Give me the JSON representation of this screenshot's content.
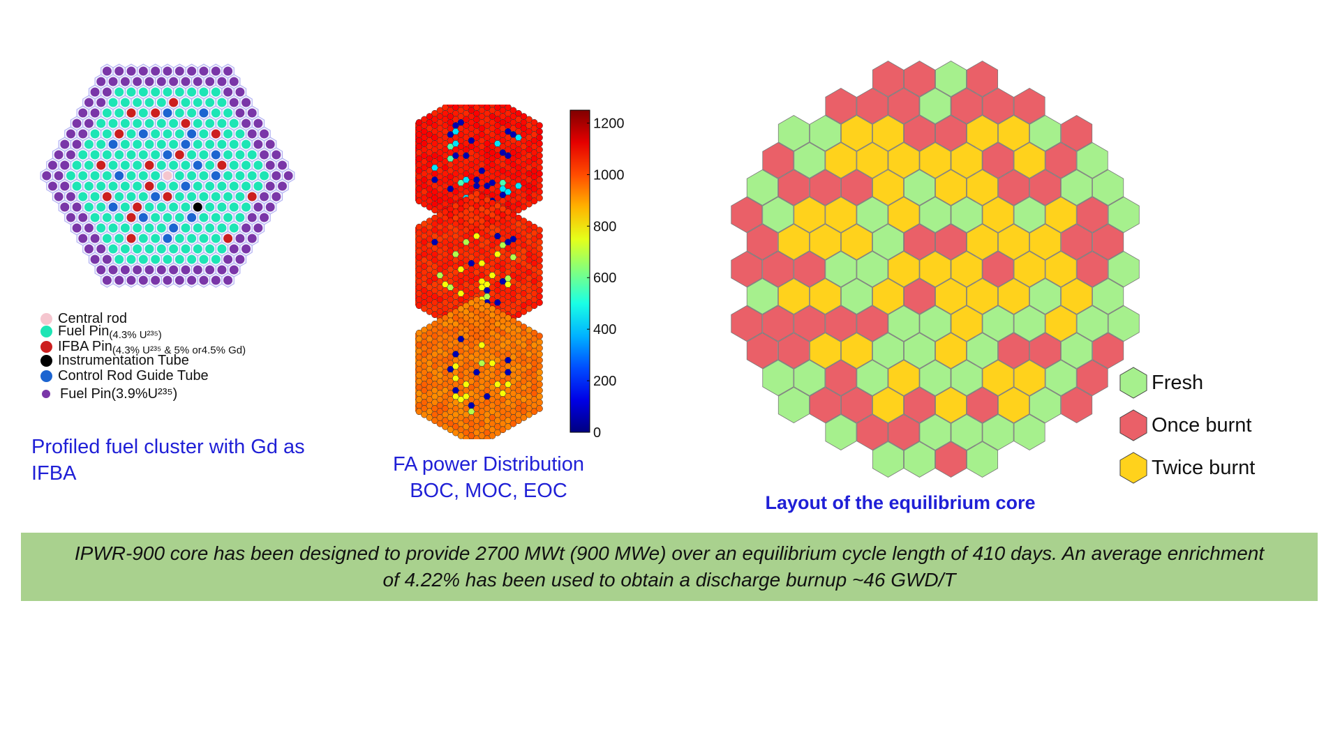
{
  "cluster": {
    "caption": "Profiled fuel cluster with Gd as IFBA",
    "legend": [
      {
        "key": "central_rod",
        "color": "#f5c6cf",
        "label": "Central rod",
        "sub": ""
      },
      {
        "key": "fuel_pin_43",
        "color": "#1de5b5",
        "label": "Fuel Pin",
        "sub": "(4.3% U²³⁵)"
      },
      {
        "key": "ifba_pin",
        "color": "#cc1f1f",
        "label": "IFBA Pin",
        "sub": "(4.3% U²³⁵  & 5% or4.5% Gd)"
      },
      {
        "key": "instrumentation_tube",
        "color": "#000000",
        "label": "Instrumentation Tube",
        "sub": ""
      },
      {
        "key": "control_rod_guide_tube",
        "color": "#1c64d0",
        "label": "Control Rod Guide Tube",
        "sub": ""
      },
      {
        "key": "fuel_pin_39",
        "color": "#7a36a8",
        "label": "Fuel Pin(3.9%U²³⁵)",
        "sub": ""
      }
    ]
  },
  "fa_power": {
    "caption_line1": "FA power Distribution",
    "caption_line2": "BOC, MOC, EOC",
    "colorbar": {
      "min": 0,
      "max": 1250,
      "ticks": [
        "0",
        "200",
        "400",
        "600",
        "800",
        "1000",
        "1200"
      ]
    },
    "assemblies": [
      "BOC",
      "MOC",
      "EOC"
    ]
  },
  "core": {
    "caption": "Layout of the equilibrium core",
    "legend": [
      {
        "key": "fresh",
        "label": "Fresh",
        "color": "#a6f08d"
      },
      {
        "key": "once_burnt",
        "label": "Once burnt",
        "color": "#ea6068"
      },
      {
        "key": "twice_burnt",
        "label": "Twice burnt",
        "color": "#ffd21c"
      }
    ]
  },
  "summary": {
    "line1": "IPWR-900 core has been designed to provide 2700 MWt  (900 MWe) over an equilibrium cycle length of 410 days.  An average  enrichment",
    "line2": "of 4.22% has been used to obtain a discharge burnup ~46 GWD/T"
  }
}
